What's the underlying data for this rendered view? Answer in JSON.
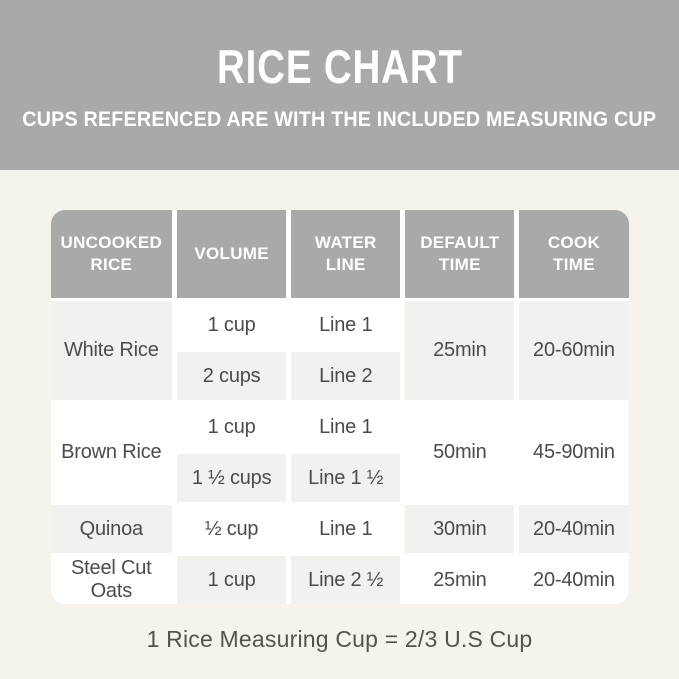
{
  "banner": {
    "title": "RICE CHART",
    "subtitle": "CUPS REFERENCED ARE WITH THE INCLUDED MEASURING CUP"
  },
  "chart_data": {
    "type": "table",
    "title": "RICE CHART",
    "columns": [
      "UNCOOKED RICE",
      "VOLUME",
      "WATER LINE",
      "DEFAULT TIME",
      "COOK TIME"
    ],
    "groups": [
      {
        "rice": "White Rice",
        "variants": [
          {
            "volume": "1 cup",
            "water_line": "Line 1"
          },
          {
            "volume": "2 cups",
            "water_line": "Line 2"
          }
        ],
        "default_time": "25min",
        "cook_time": "20-60min"
      },
      {
        "rice": "Brown Rice",
        "variants": [
          {
            "volume": "1 cup",
            "water_line": "Line 1"
          },
          {
            "volume": "1 ½ cups",
            "water_line": "Line 1 ½"
          }
        ],
        "default_time": "50min",
        "cook_time": "45-90min"
      },
      {
        "rice": "Quinoa",
        "variants": [
          {
            "volume": "½ cup",
            "water_line": "Line 1"
          }
        ],
        "default_time": "30min",
        "cook_time": "20-40min"
      },
      {
        "rice": "Steel Cut Oats",
        "variants": [
          {
            "volume": "1 cup",
            "water_line": "Line 2 ½"
          }
        ],
        "default_time": "25min",
        "cook_time": "20-40min"
      }
    ]
  },
  "footer": {
    "note": "1 Rice Measuring Cup = 2/3 U.S Cup"
  },
  "colors": {
    "banner_gray": "#a9a9a8",
    "page_background": "#f5f3ec",
    "cell_white": "#ffffff",
    "cell_shaded": "#f1f1ee",
    "body_text": "#4b4b49",
    "header_text": "#ffffff"
  }
}
